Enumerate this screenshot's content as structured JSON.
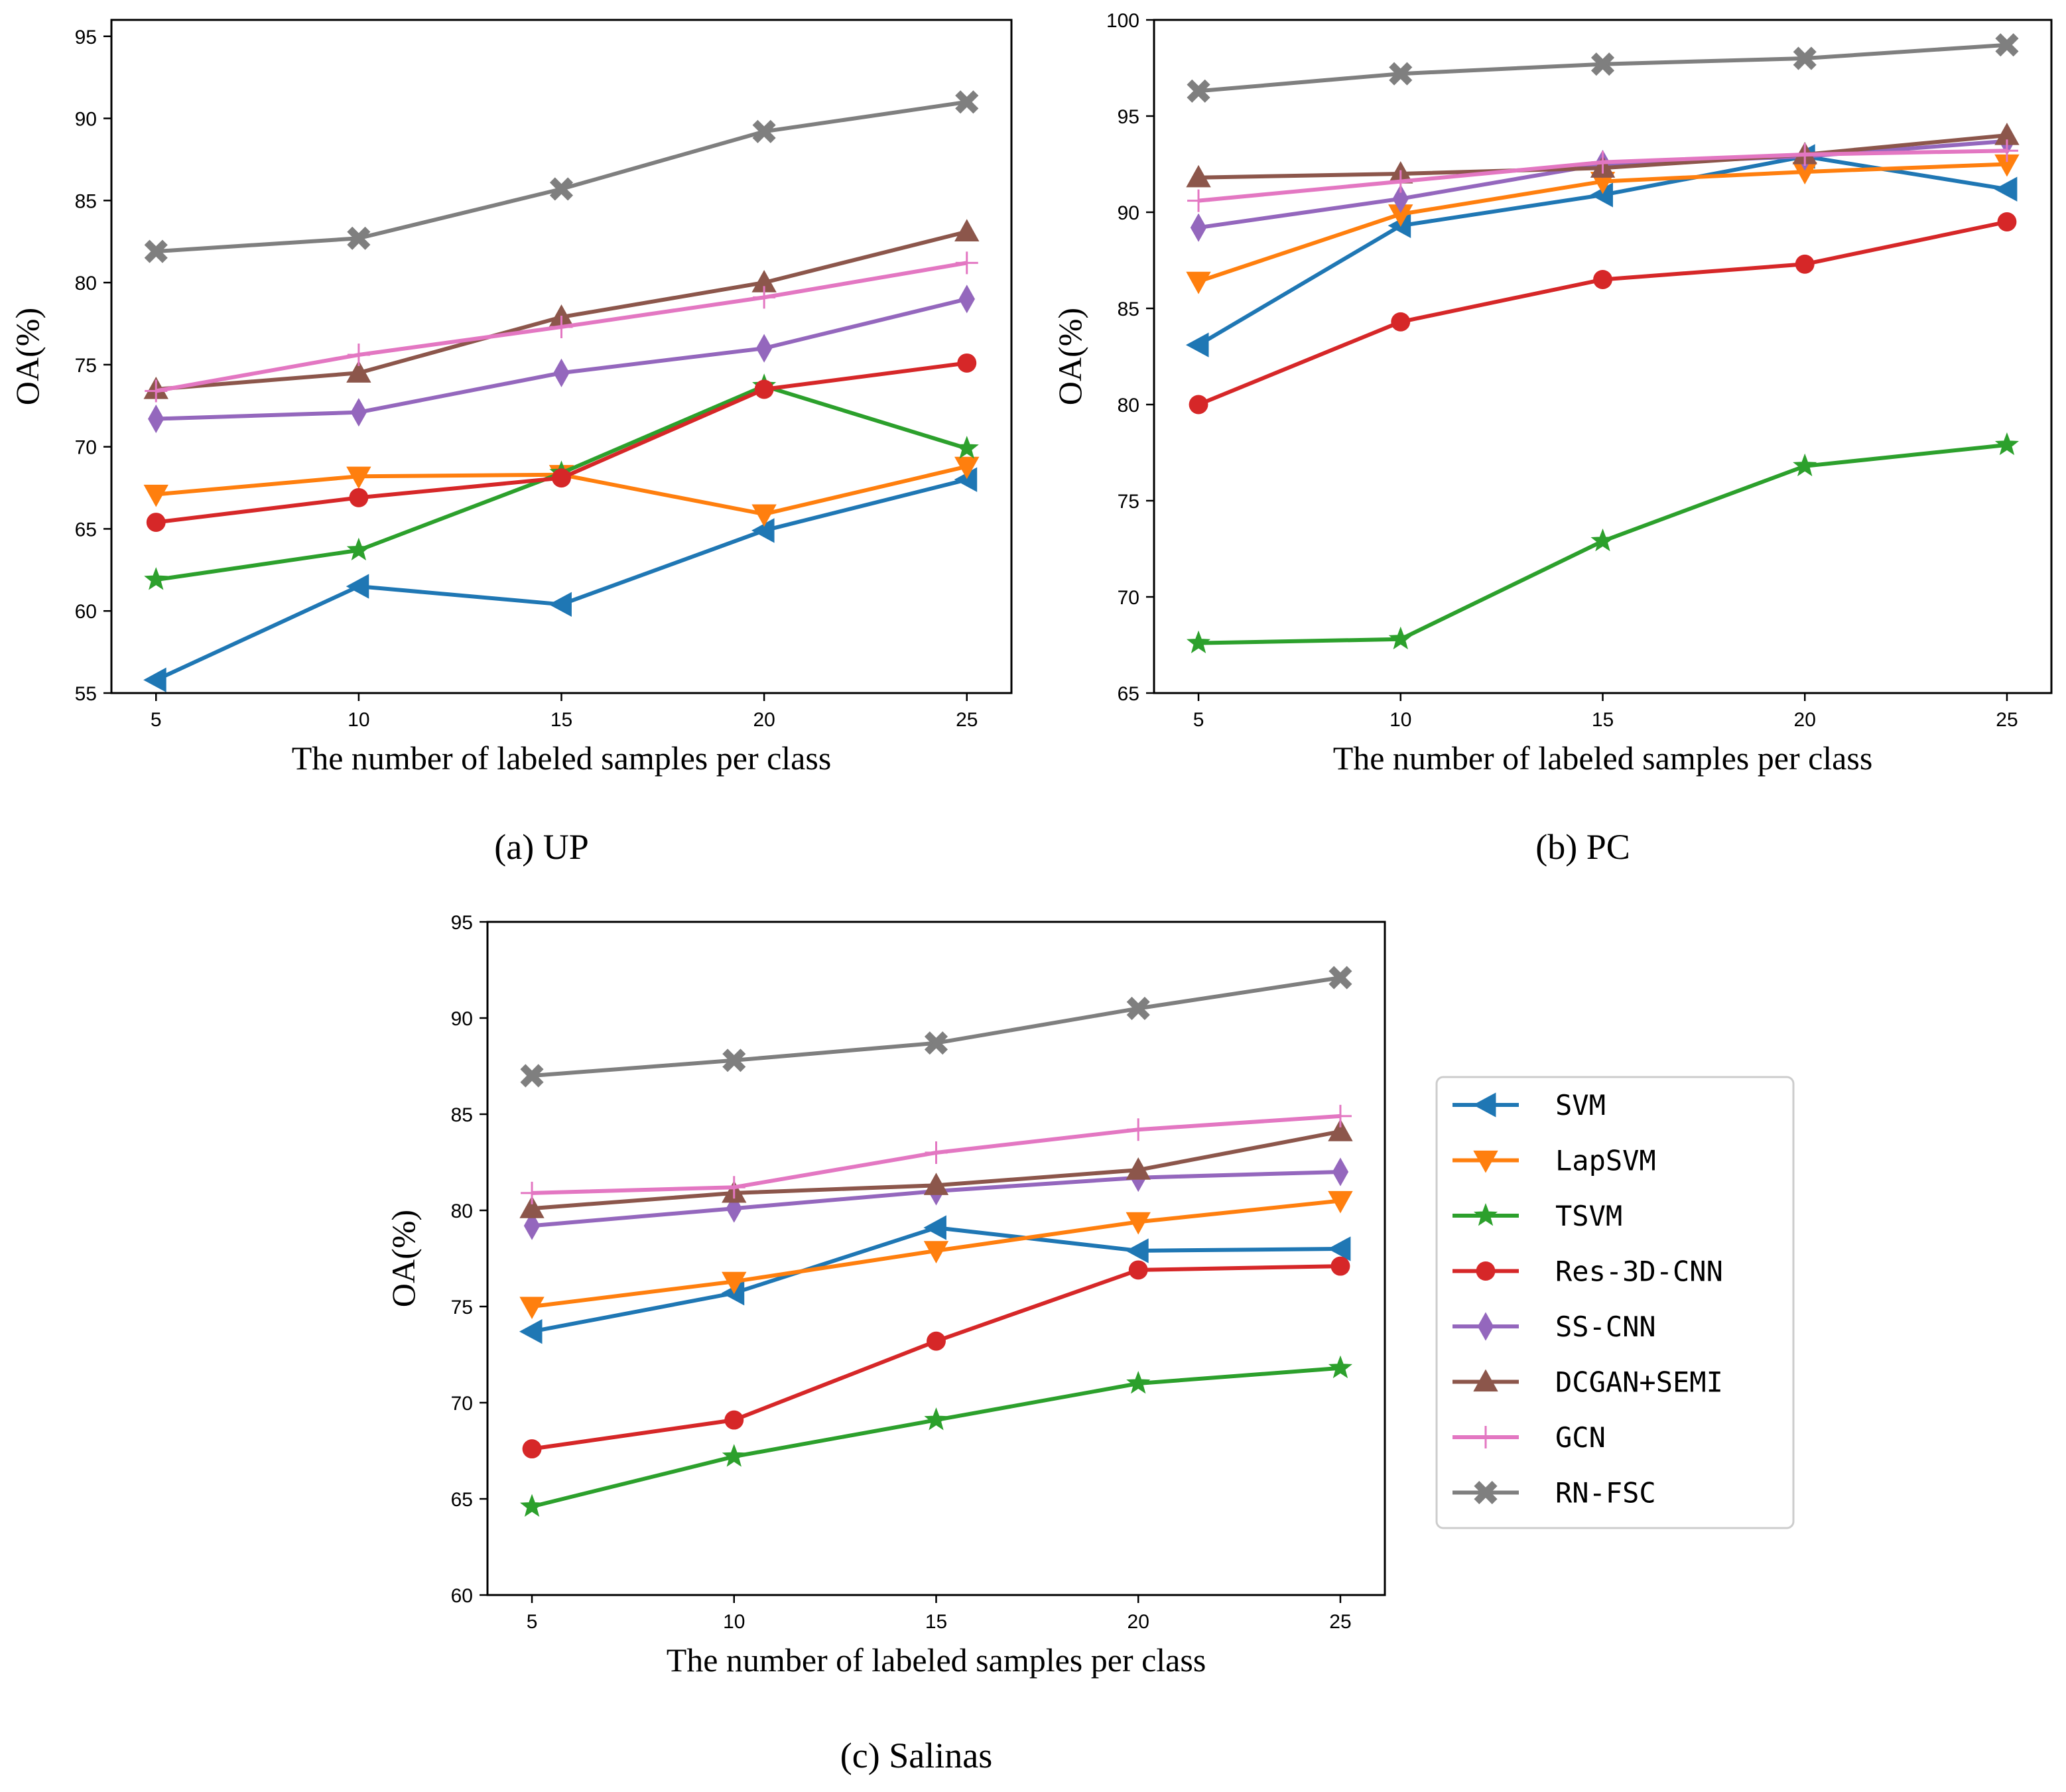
{
  "colors": {
    "SVM": "#1f77b4",
    "LapSVM": "#ff7f0e",
    "TSVM": "#2ca02c",
    "Res-3D-CNN": "#d62728",
    "SS-CNN": "#9467bd",
    "DCGAN+SEMI": "#8c564b",
    "GCN": "#e377c2",
    "RN-FSC": "#7f7f7f"
  },
  "legend": {
    "entries": [
      {
        "name": "SVM",
        "marker": "triangle-left"
      },
      {
        "name": "LapSVM",
        "marker": "triangle-down"
      },
      {
        "name": "TSVM",
        "marker": "star"
      },
      {
        "name": "Res-3D-CNN",
        "marker": "circle"
      },
      {
        "name": "SS-CNN",
        "marker": "thin-diamond"
      },
      {
        "name": "DCGAN+SEMI",
        "marker": "triangle-up"
      },
      {
        "name": "GCN",
        "marker": "plus"
      },
      {
        "name": "RN-FSC",
        "marker": "x-filled"
      }
    ]
  },
  "chart_data": [
    {
      "type": "line",
      "caption": "(a) UP",
      "xlabel": "The number of labeled samples per class",
      "ylabel": "OA(%)",
      "x": [
        5,
        10,
        15,
        20,
        25
      ],
      "xlim": [
        3.9,
        26.1
      ],
      "ylim": [
        55,
        96
      ],
      "yticks": [
        55,
        60,
        65,
        70,
        75,
        80,
        85,
        90,
        95
      ],
      "series": [
        {
          "name": "SVM",
          "values": [
            55.8,
            61.5,
            60.4,
            64.9,
            68.0
          ]
        },
        {
          "name": "LapSVM",
          "values": [
            67.1,
            68.2,
            68.3,
            65.9,
            68.8
          ]
        },
        {
          "name": "TSVM",
          "values": [
            61.9,
            63.7,
            68.4,
            73.7,
            69.9
          ]
        },
        {
          "name": "Res-3D-CNN",
          "values": [
            65.4,
            66.9,
            68.1,
            73.5,
            75.1
          ]
        },
        {
          "name": "SS-CNN",
          "values": [
            71.7,
            72.1,
            74.5,
            76.0,
            79.0
          ]
        },
        {
          "name": "DCGAN+SEMI",
          "values": [
            73.5,
            74.5,
            77.9,
            80.0,
            83.1
          ]
        },
        {
          "name": "GCN",
          "values": [
            73.4,
            75.6,
            77.3,
            79.1,
            81.2
          ]
        },
        {
          "name": "RN-FSC",
          "values": [
            81.9,
            82.7,
            85.7,
            89.2,
            91.0
          ]
        }
      ]
    },
    {
      "type": "line",
      "caption": "(b) PC",
      "xlabel": "The number of labeled samples per class",
      "ylabel": "OA(%)",
      "x": [
        5,
        10,
        15,
        20,
        25
      ],
      "xlim": [
        3.9,
        26.1
      ],
      "ylim": [
        65,
        100
      ],
      "yticks": [
        65,
        70,
        75,
        80,
        85,
        90,
        95,
        100
      ],
      "series": [
        {
          "name": "SVM",
          "values": [
            83.1,
            89.3,
            90.9,
            92.9,
            91.2
          ]
        },
        {
          "name": "LapSVM",
          "values": [
            86.4,
            89.9,
            91.6,
            92.1,
            92.5
          ]
        },
        {
          "name": "TSVM",
          "values": [
            67.6,
            67.8,
            72.9,
            76.8,
            77.9
          ]
        },
        {
          "name": "Res-3D-CNN",
          "values": [
            80.0,
            84.3,
            86.5,
            87.3,
            89.5
          ]
        },
        {
          "name": "SS-CNN",
          "values": [
            89.2,
            90.7,
            92.5,
            92.9,
            93.7
          ]
        },
        {
          "name": "DCGAN+SEMI",
          "values": [
            91.8,
            92.0,
            92.3,
            93.0,
            94.0
          ]
        },
        {
          "name": "GCN",
          "values": [
            90.6,
            91.6,
            92.6,
            93.0,
            93.2
          ]
        },
        {
          "name": "RN-FSC",
          "values": [
            96.3,
            97.2,
            97.7,
            98.0,
            98.7
          ]
        }
      ]
    },
    {
      "type": "line",
      "caption": "(c) Salinas",
      "xlabel": "The number of labeled samples per class",
      "ylabel": "OA(%)",
      "x": [
        5,
        10,
        15,
        20,
        25
      ],
      "xlim": [
        3.9,
        26.1
      ],
      "ylim": [
        60,
        95
      ],
      "yticks": [
        60,
        65,
        70,
        75,
        80,
        85,
        90,
        95
      ],
      "series": [
        {
          "name": "SVM",
          "values": [
            73.7,
            75.7,
            79.1,
            77.9,
            78.0
          ]
        },
        {
          "name": "LapSVM",
          "values": [
            75.0,
            76.3,
            77.9,
            79.4,
            80.5
          ]
        },
        {
          "name": "TSVM",
          "values": [
            64.6,
            67.2,
            69.1,
            71.0,
            71.8
          ]
        },
        {
          "name": "Res-3D-CNN",
          "values": [
            67.6,
            69.1,
            73.2,
            76.9,
            77.1
          ]
        },
        {
          "name": "SS-CNN",
          "values": [
            79.2,
            80.1,
            81.0,
            81.7,
            82.0
          ]
        },
        {
          "name": "DCGAN+SEMI",
          "values": [
            80.1,
            80.9,
            81.3,
            82.1,
            84.1
          ]
        },
        {
          "name": "GCN",
          "values": [
            80.9,
            81.2,
            83.0,
            84.2,
            84.9
          ]
        },
        {
          "name": "RN-FSC",
          "values": [
            87.0,
            87.8,
            88.7,
            90.5,
            92.1
          ]
        }
      ]
    }
  ]
}
